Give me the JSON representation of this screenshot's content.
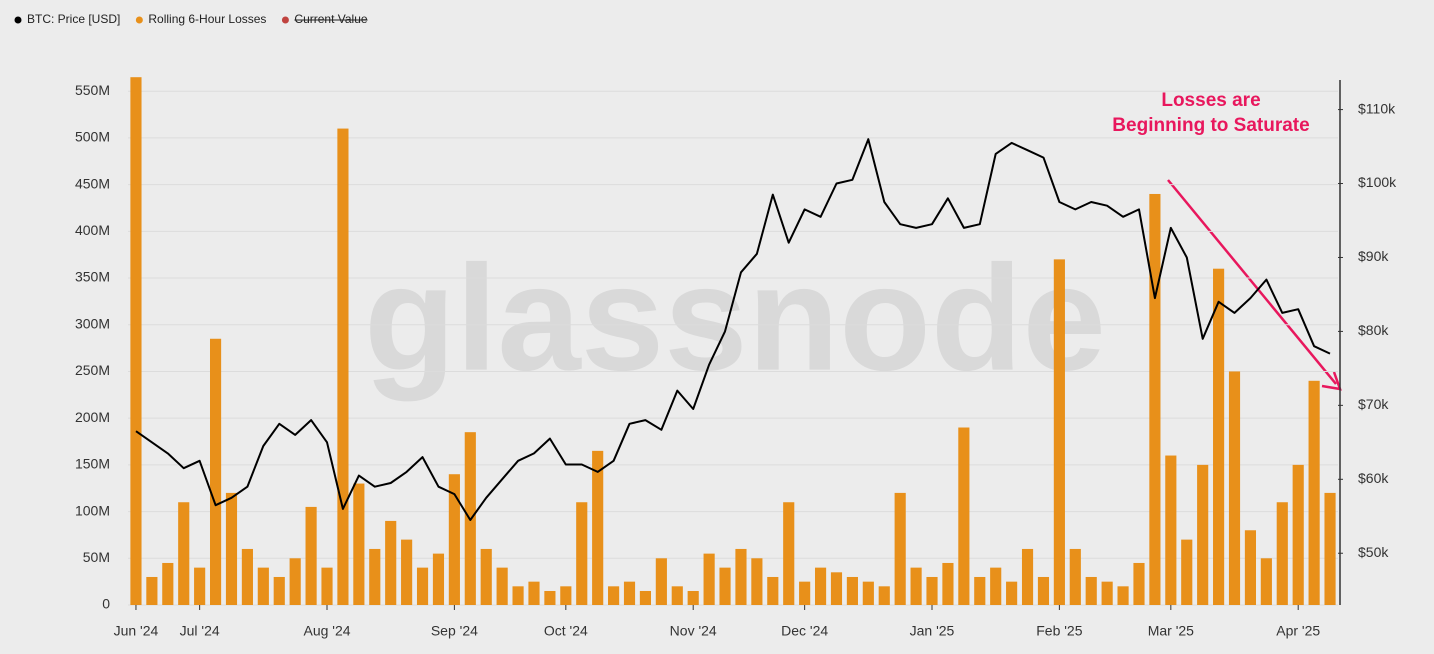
{
  "chart_data": {
    "type": "combo",
    "watermark": "glassnode",
    "annotation": [
      "Losses are",
      "Beginning to Saturate"
    ],
    "categories": [
      "Jun '24",
      null,
      null,
      null,
      "Jul '24",
      null,
      null,
      null,
      null,
      null,
      null,
      null,
      "Aug '24",
      null,
      null,
      null,
      null,
      null,
      null,
      null,
      "Sep '24",
      null,
      null,
      null,
      null,
      null,
      null,
      "Oct '24",
      null,
      null,
      null,
      null,
      null,
      null,
      null,
      "Nov '24",
      null,
      null,
      null,
      null,
      null,
      null,
      "Dec '24",
      null,
      null,
      null,
      null,
      null,
      null,
      null,
      "Jan '25",
      null,
      null,
      null,
      null,
      null,
      null,
      null,
      "Feb '25",
      null,
      null,
      null,
      null,
      null,
      null,
      "Mar '25",
      null,
      null,
      null,
      null,
      null,
      null,
      null,
      "Apr '25",
      null,
      null
    ],
    "series": [
      {
        "name": "BTC: Price [USD]",
        "type": "line",
        "axis": "y2",
        "color": "#000000",
        "values": [
          66500,
          65000,
          63500,
          61500,
          62500,
          56500,
          57500,
          59000,
          64500,
          67500,
          66000,
          68000,
          65000,
          56000,
          60500,
          59000,
          59500,
          61000,
          63000,
          59000,
          58000,
          54500,
          57500,
          60000,
          62500,
          63500,
          65500,
          62000,
          62000,
          61000,
          62500,
          67500,
          68000,
          66700,
          72000,
          69500,
          75500,
          80000,
          88000,
          90500,
          98500,
          92000,
          96500,
          95500,
          100000,
          100500,
          106000,
          97500,
          94500,
          94000,
          94500,
          98000,
          94000,
          94500,
          104000,
          105500,
          104500,
          103500,
          97500,
          96500,
          97500,
          97000,
          95500,
          96500,
          84500,
          94000,
          90000,
          79000,
          84000,
          82500,
          84500,
          87000,
          82500,
          83000,
          78000,
          77000
        ]
      },
      {
        "name": "Rolling 6-Hour Losses",
        "type": "bar",
        "axis": "y",
        "color": "#e8901a",
        "values": [
          565000000,
          30000000,
          45000000,
          110000000,
          40000000,
          285000000,
          120000000,
          60000000,
          40000000,
          30000000,
          50000000,
          105000000,
          40000000,
          510000000,
          130000000,
          60000000,
          90000000,
          70000000,
          40000000,
          55000000,
          140000000,
          185000000,
          60000000,
          40000000,
          20000000,
          25000000,
          15000000,
          20000000,
          110000000,
          165000000,
          20000000,
          25000000,
          15000000,
          50000000,
          20000000,
          15000000,
          55000000,
          40000000,
          60000000,
          50000000,
          30000000,
          110000000,
          25000000,
          40000000,
          35000000,
          30000000,
          25000000,
          20000000,
          120000000,
          40000000,
          30000000,
          45000000,
          190000000,
          30000000,
          40000000,
          25000000,
          60000000,
          30000000,
          370000000,
          60000000,
          30000000,
          25000000,
          20000000,
          45000000,
          440000000,
          160000000,
          70000000,
          150000000,
          360000000,
          250000000,
          80000000,
          50000000,
          110000000,
          150000000,
          240000000,
          120000000
        ]
      }
    ],
    "legend_disabled": [
      {
        "name": "Current Value",
        "color": "#c0433f"
      }
    ],
    "ylim": [
      0,
      562000000
    ],
    "yticks": [
      0,
      {
        "value": 50000000,
        "label": "50M"
      },
      {
        "value": 100000000,
        "label": "100M"
      },
      {
        "value": 150000000,
        "label": "150M"
      },
      {
        "value": 200000000,
        "label": "200M"
      },
      {
        "value": 250000000,
        "label": "250M"
      },
      {
        "value": 300000000,
        "label": "300M"
      },
      {
        "value": 350000000,
        "label": "350M"
      },
      {
        "value": 400000000,
        "label": "400M"
      },
      {
        "value": 450000000,
        "label": "450M"
      },
      {
        "value": 500000000,
        "label": "500M"
      },
      {
        "value": 550000000,
        "label": "550M"
      }
    ],
    "y2lim": [
      43000,
      114000
    ],
    "y2ticks": [
      {
        "value": 50000,
        "label": "$50k"
      },
      {
        "value": 60000,
        "label": "$60k"
      },
      {
        "value": 70000,
        "label": "$70k"
      },
      {
        "value": 80000,
        "label": "$80k"
      },
      {
        "value": 90000,
        "label": "$90k"
      },
      {
        "value": 100000,
        "label": "$100k"
      },
      {
        "value": 110000,
        "label": "$110k"
      }
    ],
    "grid": true
  }
}
